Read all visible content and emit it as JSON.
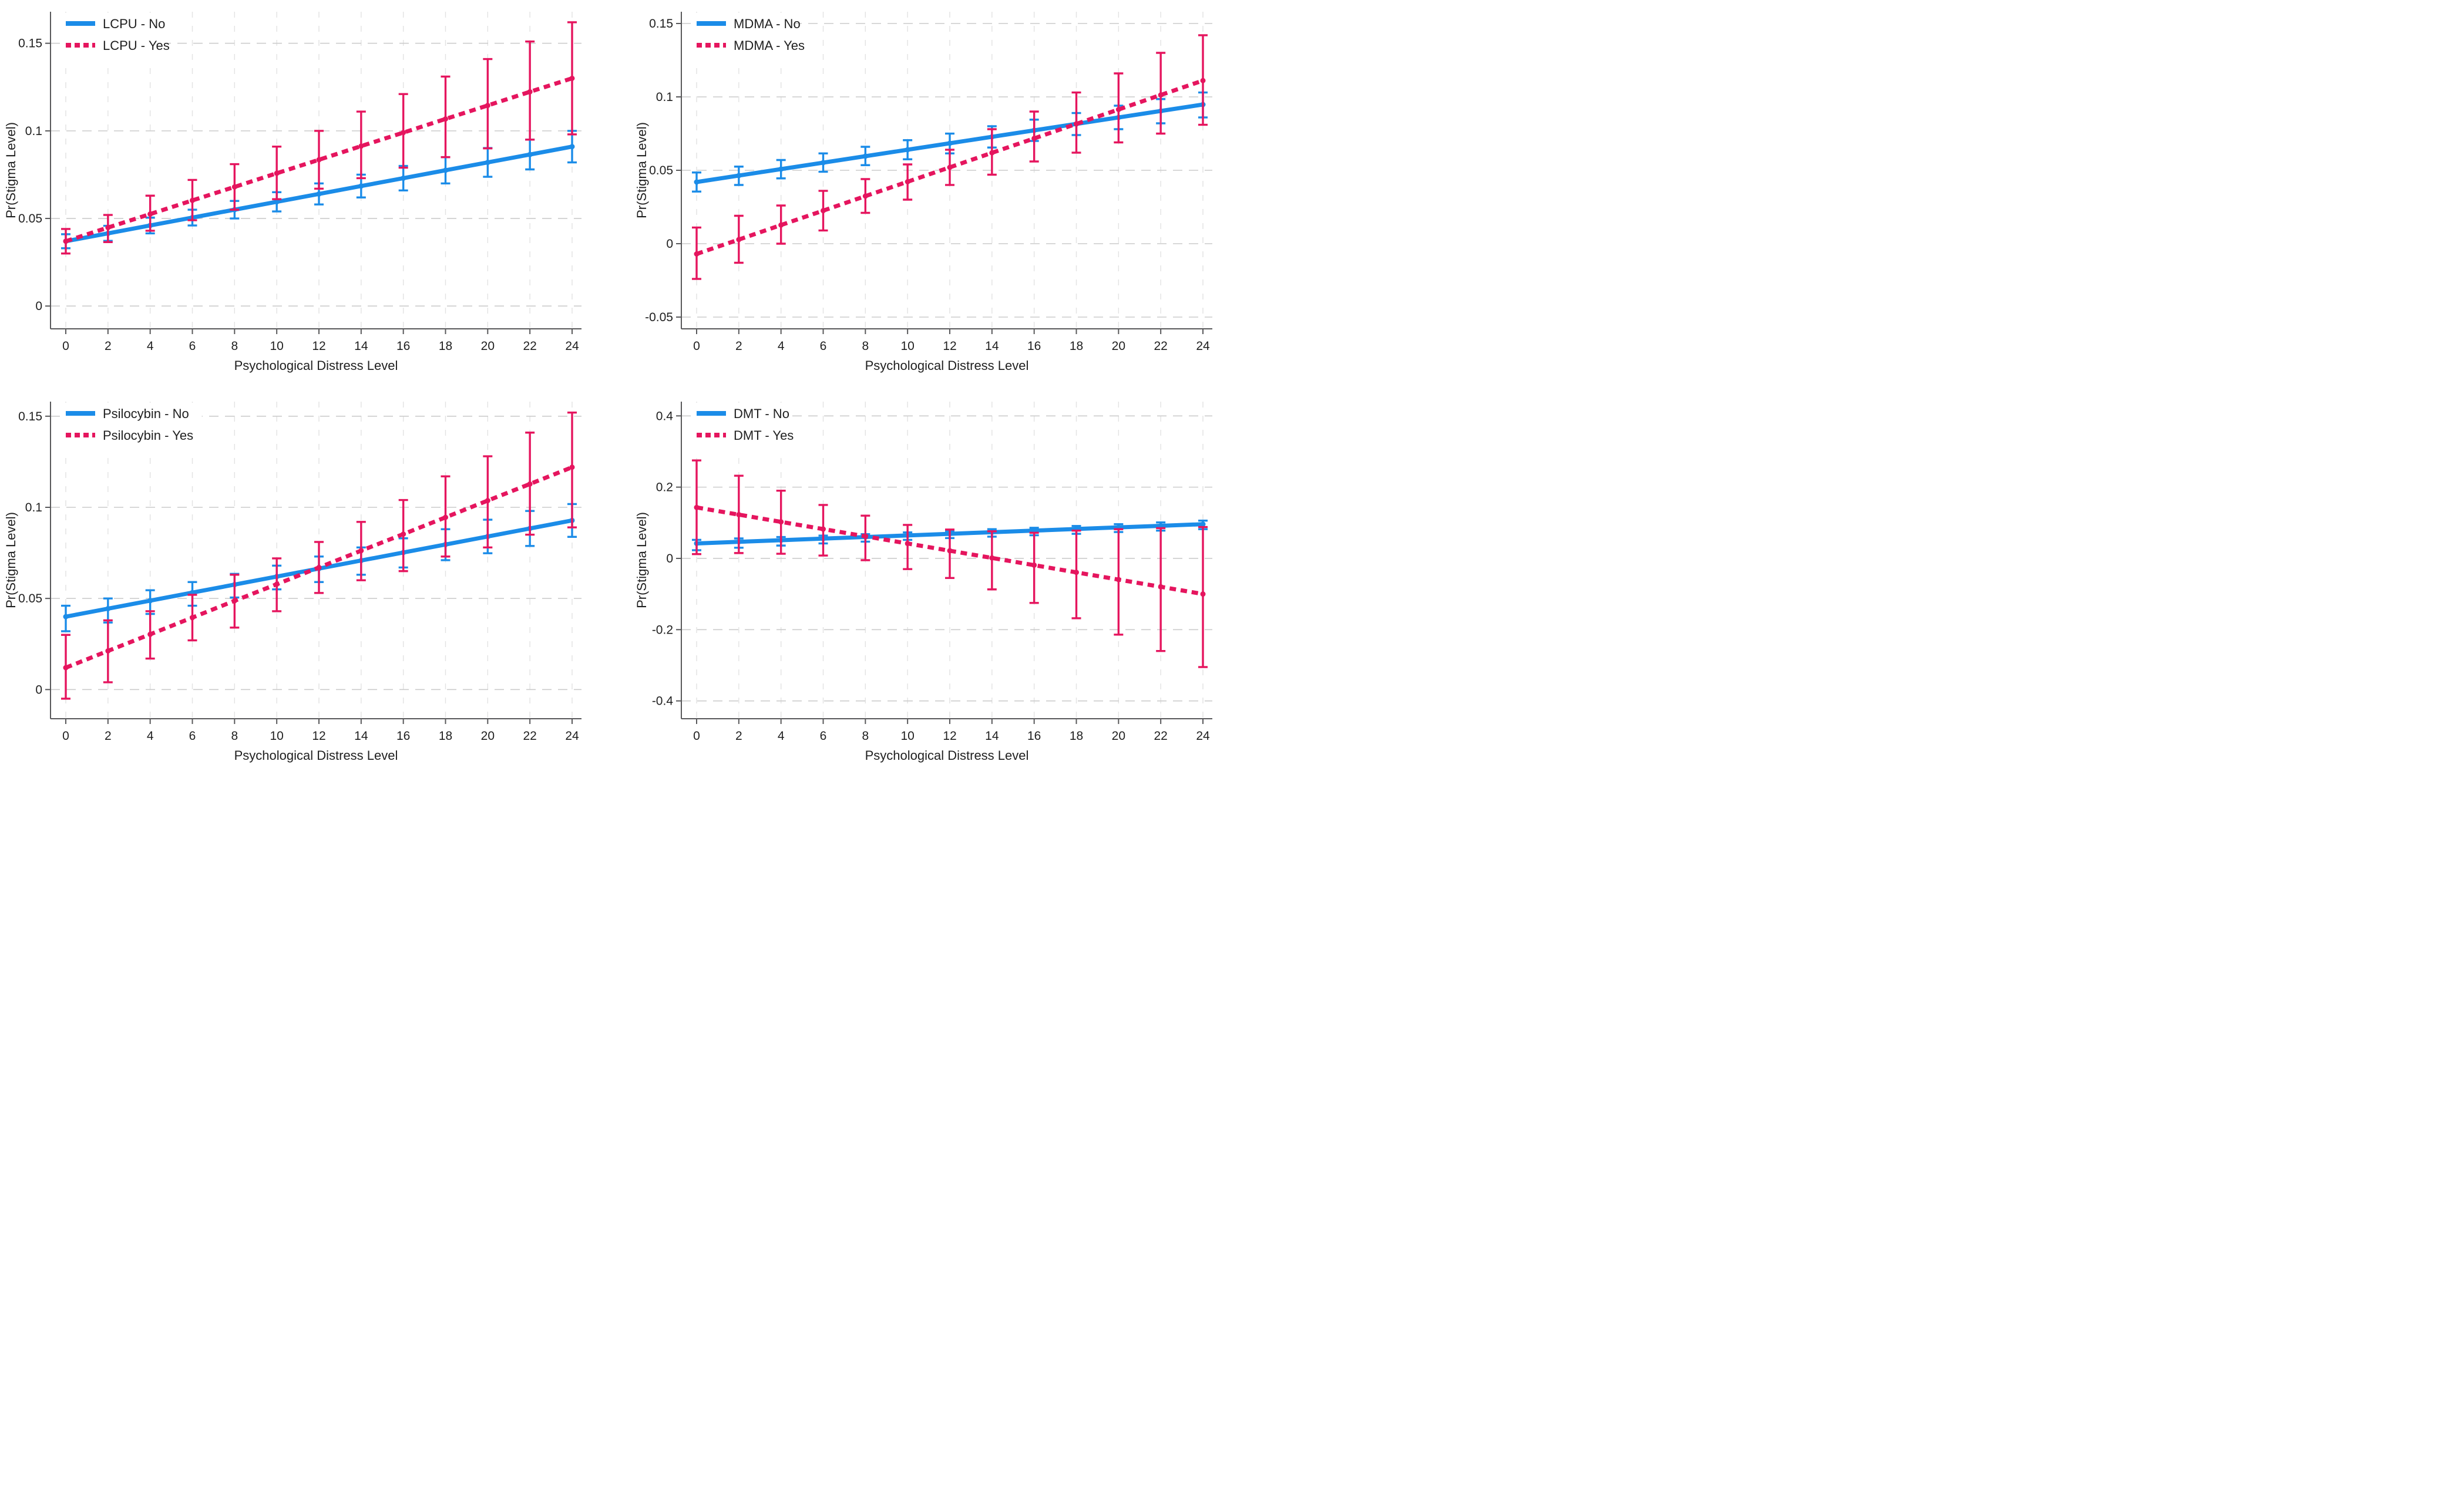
{
  "page": {
    "background": "#ffffff"
  },
  "colors": {
    "blue": "#1b8ce8",
    "pink": "#e5155e",
    "axis": "#58585a",
    "tick_text": "#1f1f1f",
    "grid_h": "#cccccc",
    "grid_v": "#e2e2e2",
    "legend_bg": "#ffffff"
  },
  "chart_data": [
    {
      "id": "lcpu",
      "type": "line",
      "title": "",
      "xlabel": "Psychological Distress Level",
      "ylabel": "Pr(Stigma Level)",
      "x": [
        0,
        2,
        4,
        6,
        8,
        10,
        12,
        14,
        16,
        18,
        20,
        22,
        24
      ],
      "xtick_labels": [
        "0",
        "2",
        "4",
        "6",
        "8",
        "10",
        "12",
        "14",
        "16",
        "18",
        "20",
        "22",
        "24"
      ],
      "yticks": [
        0,
        0.05,
        0.1,
        0.15
      ],
      "ytick_labels": [
        "0",
        "0.05",
        "0.1",
        "0.15"
      ],
      "ylim": [
        -0.013,
        0.168
      ],
      "xlim": [
        0,
        24
      ],
      "grid": true,
      "legend_position": "top-left",
      "series": [
        {
          "name": "LCPU - No",
          "color": "blue",
          "dash": "solid",
          "values": [
            0.037,
            0.0415,
            0.046,
            0.0505,
            0.055,
            0.0595,
            0.064,
            0.0685,
            0.073,
            0.0775,
            0.082,
            0.0865,
            0.091
          ],
          "ci_lo": [
            0.033,
            0.0372,
            0.0415,
            0.046,
            0.05,
            0.054,
            0.058,
            0.062,
            0.066,
            0.07,
            0.0738,
            0.078,
            0.082
          ],
          "ci_hi": [
            0.041,
            0.0458,
            0.0505,
            0.055,
            0.06,
            0.065,
            0.07,
            0.075,
            0.08,
            0.085,
            0.0902,
            0.095,
            0.1
          ]
        },
        {
          "name": "LCPU - Yes",
          "color": "pink",
          "dash": "dashed",
          "values": [
            0.037,
            0.0448,
            0.0525,
            0.0603,
            0.068,
            0.0758,
            0.0835,
            0.0913,
            0.099,
            0.1068,
            0.1145,
            0.1223,
            0.13
          ],
          "ci_lo": [
            0.03,
            0.0365,
            0.043,
            0.049,
            0.055,
            0.061,
            0.067,
            0.073,
            0.079,
            0.085,
            0.09,
            0.095,
            0.098
          ],
          "ci_hi": [
            0.044,
            0.052,
            0.063,
            0.072,
            0.081,
            0.091,
            0.1,
            0.111,
            0.121,
            0.131,
            0.141,
            0.151,
            0.162
          ]
        }
      ]
    },
    {
      "id": "mdma",
      "type": "line",
      "title": "",
      "xlabel": "Psychological Distress Level",
      "ylabel": "Pr(Stigma Level)",
      "x": [
        0,
        2,
        4,
        6,
        8,
        10,
        12,
        14,
        16,
        18,
        20,
        22,
        24
      ],
      "xtick_labels": [
        "0",
        "2",
        "4",
        "6",
        "8",
        "10",
        "12",
        "14",
        "16",
        "18",
        "20",
        "22",
        "24"
      ],
      "yticks": [
        -0.05,
        0,
        0.05,
        0.1,
        0.15
      ],
      "ytick_labels": [
        "-0.05",
        "0",
        "0.05",
        "0.1",
        "0.15"
      ],
      "ylim": [
        -0.058,
        0.158
      ],
      "xlim": [
        0,
        24
      ],
      "grid": true,
      "legend_position": "top-left",
      "series": [
        {
          "name": "MDMA - No",
          "color": "blue",
          "dash": "solid",
          "values": [
            0.042,
            0.0464,
            0.0508,
            0.0552,
            0.0596,
            0.064,
            0.0684,
            0.0728,
            0.0772,
            0.0816,
            0.086,
            0.0904,
            0.0948
          ],
          "ci_lo": [
            0.0355,
            0.04,
            0.0445,
            0.049,
            0.0535,
            0.0575,
            0.0615,
            0.0655,
            0.07,
            0.074,
            0.078,
            0.082,
            0.086
          ],
          "ci_hi": [
            0.0485,
            0.0525,
            0.057,
            0.0615,
            0.066,
            0.0705,
            0.075,
            0.08,
            0.0845,
            0.089,
            0.094,
            0.0985,
            0.103
          ]
        },
        {
          "name": "MDMA - Yes",
          "color": "pink",
          "dash": "dashed",
          "values": [
            -0.007,
            0.0028,
            0.0127,
            0.0225,
            0.0324,
            0.0422,
            0.052,
            0.0619,
            0.0717,
            0.0816,
            0.0914,
            0.1013,
            0.1111
          ],
          "ci_lo": [
            -0.024,
            -0.013,
            0.0,
            0.009,
            0.021,
            0.03,
            0.04,
            0.047,
            0.056,
            0.062,
            0.069,
            0.075,
            0.081
          ],
          "ci_hi": [
            0.011,
            0.019,
            0.026,
            0.036,
            0.044,
            0.054,
            0.064,
            0.078,
            0.09,
            0.103,
            0.116,
            0.13,
            0.142
          ]
        }
      ]
    },
    {
      "id": "psilocybin",
      "type": "line",
      "title": "",
      "xlabel": "Psychological Distress Level",
      "ylabel": "Pr(Stigma Level)",
      "x": [
        0,
        2,
        4,
        6,
        8,
        10,
        12,
        14,
        16,
        18,
        20,
        22,
        24
      ],
      "xtick_labels": [
        "0",
        "2",
        "4",
        "6",
        "8",
        "10",
        "12",
        "14",
        "16",
        "18",
        "20",
        "22",
        "24"
      ],
      "yticks": [
        0,
        0.05,
        0.1,
        0.15
      ],
      "ytick_labels": [
        "0",
        "0.05",
        "0.1",
        "0.15"
      ],
      "ylim": [
        -0.016,
        0.158
      ],
      "xlim": [
        0,
        24
      ],
      "grid": true,
      "legend_position": "top-left",
      "series": [
        {
          "name": "Psilocybin - No",
          "color": "blue",
          "dash": "solid",
          "values": [
            0.04,
            0.0444,
            0.0488,
            0.0532,
            0.0576,
            0.062,
            0.0664,
            0.0708,
            0.0752,
            0.0796,
            0.084,
            0.0884,
            0.0928
          ],
          "ci_lo": [
            0.032,
            0.0368,
            0.0415,
            0.046,
            0.0505,
            0.055,
            0.059,
            0.063,
            0.067,
            0.071,
            0.0748,
            0.0788,
            0.0838
          ],
          "ci_hi": [
            0.046,
            0.05,
            0.0545,
            0.059,
            0.0635,
            0.068,
            0.073,
            0.078,
            0.083,
            0.088,
            0.0932,
            0.098,
            0.1018
          ]
        },
        {
          "name": "Psilocybin - Yes",
          "color": "pink",
          "dash": "dashed",
          "values": [
            0.012,
            0.0212,
            0.0303,
            0.0395,
            0.0487,
            0.0578,
            0.067,
            0.0762,
            0.0853,
            0.0945,
            0.1037,
            0.1128,
            0.122
          ],
          "ci_lo": [
            -0.005,
            0.004,
            0.017,
            0.027,
            0.034,
            0.043,
            0.053,
            0.06,
            0.065,
            0.073,
            0.078,
            0.085,
            0.089
          ],
          "ci_hi": [
            0.03,
            0.038,
            0.043,
            0.052,
            0.063,
            0.072,
            0.081,
            0.092,
            0.104,
            0.117,
            0.128,
            0.141,
            0.152
          ]
        }
      ]
    },
    {
      "id": "dmt",
      "type": "line",
      "title": "",
      "xlabel": "Psychological Distress Level",
      "ylabel": "Pr(Stigma Level)",
      "x": [
        0,
        2,
        4,
        6,
        8,
        10,
        12,
        14,
        16,
        18,
        20,
        22,
        24
      ],
      "xtick_labels": [
        "0",
        "2",
        "4",
        "6",
        "8",
        "10",
        "12",
        "14",
        "16",
        "18",
        "20",
        "22",
        "24"
      ],
      "yticks": [
        -0.4,
        -0.2,
        0,
        0.2,
        0.4
      ],
      "ytick_labels": [
        "-0.4",
        "-0.2",
        "0",
        "0.2",
        "0.4"
      ],
      "ylim": [
        -0.45,
        0.44
      ],
      "xlim": [
        0,
        24
      ],
      "grid": true,
      "legend_position": "top-left",
      "series": [
        {
          "name": "DMT - No",
          "color": "blue",
          "dash": "solid",
          "values": [
            0.042,
            0.0465,
            0.051,
            0.0555,
            0.06,
            0.0645,
            0.069,
            0.0735,
            0.078,
            0.0825,
            0.087,
            0.0915,
            0.096
          ],
          "ci_lo": [
            0.023,
            0.03,
            0.036,
            0.042,
            0.047,
            0.052,
            0.057,
            0.061,
            0.065,
            0.069,
            0.074,
            0.078,
            0.082
          ],
          "ci_hi": [
            0.052,
            0.056,
            0.06,
            0.064,
            0.068,
            0.073,
            0.077,
            0.082,
            0.086,
            0.091,
            0.096,
            0.101,
            0.106
          ]
        },
        {
          "name": "DMT - Yes",
          "color": "pink",
          "dash": "dashed",
          "values": [
            0.143,
            0.1228,
            0.1025,
            0.0823,
            0.062,
            0.0418,
            0.0215,
            0.0013,
            -0.019,
            -0.0392,
            -0.0595,
            -0.0797,
            -0.1
          ],
          "ci_lo": [
            0.012,
            0.015,
            0.013,
            0.008,
            -0.005,
            -0.03,
            -0.055,
            -0.087,
            -0.125,
            -0.168,
            -0.214,
            -0.26,
            -0.305
          ],
          "ci_hi": [
            0.275,
            0.232,
            0.19,
            0.15,
            0.12,
            0.094,
            0.081,
            0.076,
            0.072,
            0.078,
            0.082,
            0.085,
            0.088
          ]
        }
      ]
    }
  ]
}
